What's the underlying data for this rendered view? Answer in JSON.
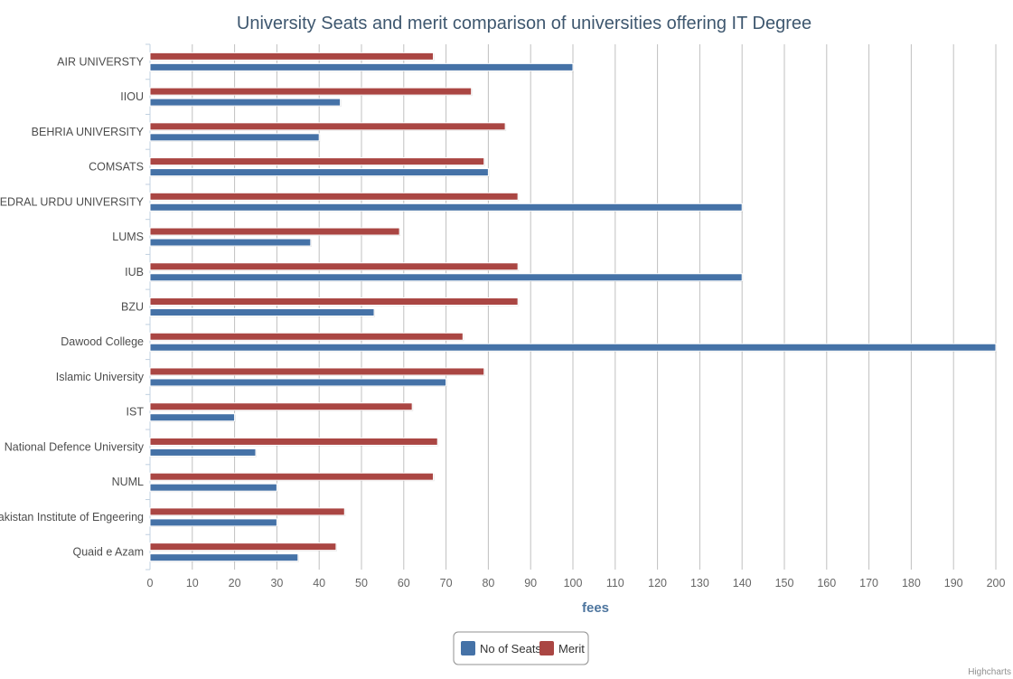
{
  "chart_data": {
    "type": "bar",
    "orientation": "horizontal",
    "title": "University Seats and merit comparison of universities offering IT Degree",
    "xlabel": "fees",
    "ylabel": "",
    "xlim": [
      0,
      200
    ],
    "tick_step": 10,
    "grid": true,
    "legend_position": "bottom-center",
    "categories": [
      "AIR UNIVERSTY",
      "IIOU",
      "BEHRIA UNIVERSITY",
      "COMSATS",
      "FEDRAL URDU UNIVERSITY",
      "LUMS",
      "IUB",
      "BZU",
      "Dawood College",
      "Islamic University",
      "IST",
      "National Defence University",
      "NUML",
      "Pakistan Institute of Engeering",
      "Quaid e Azam"
    ],
    "series": [
      {
        "name": "No of Seats",
        "color": "#4572a7",
        "values": [
          100,
          45,
          40,
          80,
          140,
          38,
          140,
          53,
          200,
          70,
          20,
          25,
          30,
          30,
          35
        ]
      },
      {
        "name": "Merit",
        "color": "#aa4643",
        "values": [
          67,
          76,
          84,
          79,
          87,
          59,
          87,
          87,
          74,
          79,
          62,
          68,
          67,
          46,
          44
        ]
      }
    ]
  },
  "credits": "Highcharts"
}
